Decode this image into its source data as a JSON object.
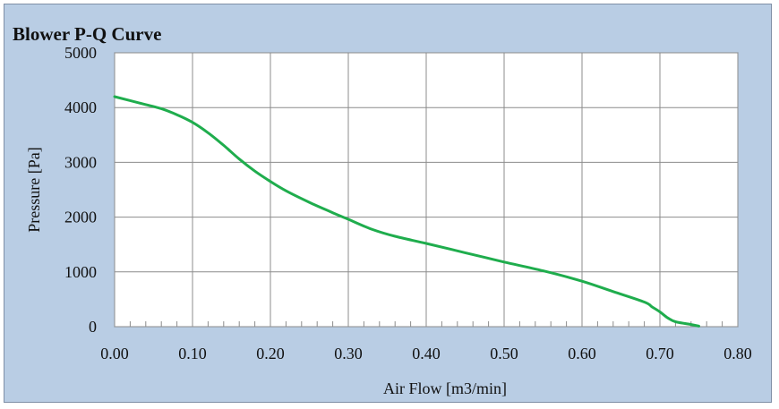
{
  "chart_data": {
    "type": "line",
    "title": "Blower P-Q Curve",
    "xlabel": "Air Flow [m3/min]",
    "ylabel": "Pressure [Pa]",
    "xlim": [
      0,
      0.8
    ],
    "ylim": [
      0,
      5000
    ],
    "x_ticks": [
      "0.00",
      "0.10",
      "0.20",
      "0.30",
      "0.40",
      "0.50",
      "0.60",
      "0.70",
      "0.80"
    ],
    "y_ticks": [
      "0",
      "1000",
      "2000",
      "3000",
      "4000",
      "5000"
    ],
    "grid": true,
    "series": [
      {
        "color": "#1fad4d",
        "x": [
          0.0,
          0.03,
          0.06,
          0.08,
          0.1,
          0.12,
          0.14,
          0.16,
          0.18,
          0.2,
          0.22,
          0.25,
          0.28,
          0.3,
          0.33,
          0.36,
          0.4,
          0.45,
          0.5,
          0.55,
          0.6,
          0.64,
          0.68,
          0.69,
          0.7,
          0.71,
          0.72,
          0.74,
          0.75
        ],
        "y": [
          4200,
          4090,
          3980,
          3870,
          3730,
          3540,
          3310,
          3060,
          2840,
          2650,
          2480,
          2270,
          2080,
          1960,
          1780,
          1650,
          1520,
          1350,
          1180,
          1020,
          830,
          640,
          450,
          360,
          270,
          160,
          90,
          40,
          10
        ]
      }
    ]
  }
}
